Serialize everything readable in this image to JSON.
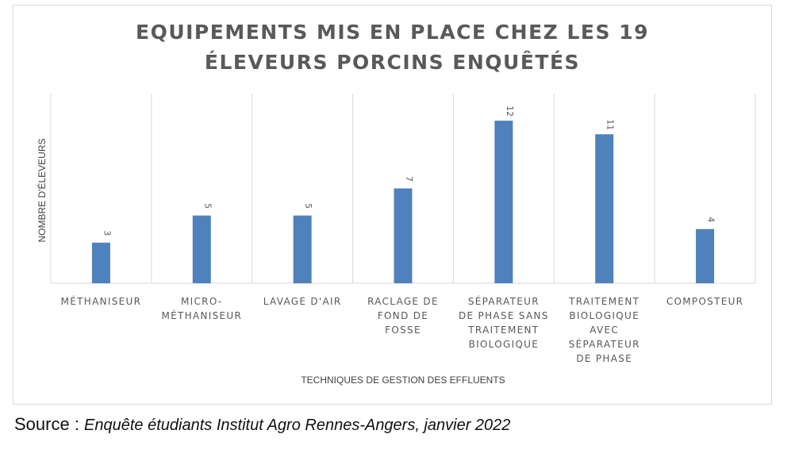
{
  "chart_data": {
    "type": "bar",
    "title": "EQUIPEMENTS MIS EN PLACE CHEZ LES 19 ÉLEVEURS PORCINS ENQUÊTÉS",
    "title_lines": [
      "EQUIPEMENTS MIS EN PLACE CHEZ LES 19",
      "ÉLEVEURS PORCINS ENQUÊTÉS"
    ],
    "xlabel": "TECHNIQUES DE GESTION DES EFFLUENTS",
    "ylabel": "NOMBRE D'ÉLEVEURS",
    "categories": [
      "MÉTHANISEUR",
      "MICRO-MÉTHANISEUR",
      "LAVAGE D'AIR",
      "RACLAGE DE FOND DE FOSSE",
      "SÉPARATEUR DE PHASE SANS TRAITEMENT BIOLOGIQUE",
      "TRAITEMENT BIOLOGIQUE AVEC SÉPARATEUR DE PHASE",
      "COMPOSTEUR"
    ],
    "category_lines": [
      [
        "MÉTHANISEUR"
      ],
      [
        "MICRO-",
        "MÉTHANISEUR"
      ],
      [
        "LAVAGE D'AIR"
      ],
      [
        "RACLAGE DE",
        "FOND DE",
        "FOSSE"
      ],
      [
        "SÉPARATEUR",
        "DE PHASE SANS",
        "TRAITEMENT",
        "BIOLOGIQUE"
      ],
      [
        "TRAITEMENT",
        "BIOLOGIQUE",
        "AVEC",
        "SÉPARATEUR",
        "DE PHASE"
      ],
      [
        "COMPOSTEUR"
      ]
    ],
    "values": [
      3,
      5,
      5,
      7,
      12,
      11,
      4
    ],
    "data_labels": [
      "3",
      "5",
      "5",
      "7",
      "12",
      "11",
      "4"
    ],
    "ylim": [
      0,
      14
    ],
    "grid": "vertical category separators",
    "legend": "none",
    "bar_color": "#4f81bd"
  },
  "source": {
    "prefix": "Source : ",
    "text": "Enquête étudiants Institut Agro Rennes-Angers, janvier 2022"
  }
}
